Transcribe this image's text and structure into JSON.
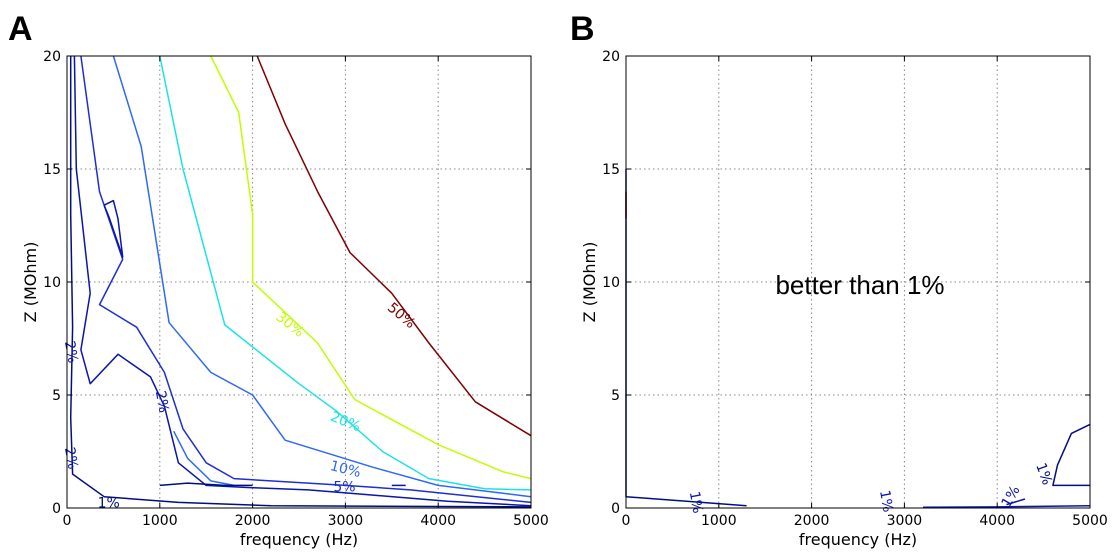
{
  "chart_data": [
    {
      "type": "contour",
      "panel_label": "A",
      "xlabel": "frequency (Hz)",
      "ylabel": "Z (MOhm)",
      "xlim": [
        0,
        5000
      ],
      "ylim": [
        0,
        20
      ],
      "xticks": [
        0,
        1000,
        2000,
        3000,
        4000,
        5000
      ],
      "yticks": [
        0,
        5,
        10,
        15,
        20
      ],
      "grid": true,
      "annotation": "",
      "levels": [
        {
          "name": "50%",
          "color": "#7f0000",
          "points": [
            [
              2050,
              20
            ],
            [
              2350,
              17
            ],
            [
              2700,
              14
            ],
            [
              3050,
              11.3
            ],
            [
              3500,
              9.5
            ],
            [
              3900,
              7.3
            ],
            [
              4400,
              4.7
            ],
            [
              5000,
              3.2
            ]
          ],
          "labels": [
            {
              "text": "50%",
              "x": 3600,
              "y": 8.5,
              "angle": 40
            }
          ]
        },
        {
          "name": "30%",
          "color": "#bfff00",
          "points": [
            [
              1550,
              20
            ],
            [
              1850,
              17.5
            ],
            [
              2000,
              13
            ],
            [
              2000,
              10
            ],
            [
              2700,
              7.3
            ],
            [
              3100,
              4.8
            ],
            [
              4000,
              2.8
            ],
            [
              4700,
              1.6
            ],
            [
              5000,
              1.3
            ]
          ],
          "labels": [
            {
              "text": "30%",
              "x": 2400,
              "y": 8.1,
              "angle": 38
            }
          ]
        },
        {
          "name": "20%",
          "color": "#1ce3e3",
          "points": [
            [
              1000,
              20
            ],
            [
              1250,
              15
            ],
            [
              1700,
              8.1
            ],
            [
              2500,
              5.5
            ],
            [
              2900,
              4.3
            ],
            [
              3400,
              2.5
            ],
            [
              3900,
              1.3
            ],
            [
              4500,
              0.85
            ],
            [
              5000,
              0.8
            ]
          ],
          "labels": [
            {
              "text": "20%",
              "x": 3000,
              "y": 3.8,
              "angle": 22
            }
          ]
        },
        {
          "name": "10%",
          "color": "#2d6af5",
          "points": [
            [
              500,
              20
            ],
            [
              800,
              16
            ],
            [
              1100,
              8.2
            ],
            [
              1550,
              6
            ],
            [
              2000,
              5
            ],
            [
              2350,
              3
            ],
            [
              3300,
              1.8
            ],
            [
              4000,
              1
            ],
            [
              5000,
              0.5
            ]
          ],
          "labels": [
            {
              "text": "10%",
              "x": 3000,
              "y": 1.7,
              "angle": 14
            }
          ]
        },
        {
          "name": "5%",
          "color": "#1e2fd2",
          "points": [
            [
              150,
              20
            ],
            [
              350,
              14
            ],
            [
              600,
              11
            ],
            [
              350,
              9
            ],
            [
              750,
              8
            ],
            [
              1050,
              6
            ],
            [
              1250,
              3.5
            ],
            [
              1500,
              2
            ],
            [
              1800,
              1.3
            ],
            [
              3000,
              1
            ],
            [
              3700,
              0.8
            ],
            [
              5000,
              0.25
            ]
          ],
          "labels": [
            {
              "text": "5%",
              "x": 2990,
              "y": 0.9,
              "angle": 0
            }
          ]
        },
        {
          "name": "2%",
          "color": "#0a15ab",
          "points": [
            [
              80,
              20
            ],
            [
              100,
              15
            ],
            [
              250,
              9.5
            ],
            [
              150,
              7
            ],
            [
              250,
              5.5
            ],
            [
              550,
              6.8
            ],
            [
              900,
              5.8
            ],
            [
              1050,
              4.5
            ],
            [
              1200,
              2
            ],
            [
              1500,
              1
            ],
            [
              2000,
              0.9
            ],
            [
              2600,
              0.8
            ],
            [
              3200,
              0.6
            ],
            [
              4100,
              0.3
            ],
            [
              5000,
              0.1
            ]
          ],
          "labels": [
            {
              "text": "2%",
              "x": 1020,
              "y": 4.7,
              "angle": 80
            },
            {
              "text": "2%",
              "x": 40,
              "y": 2.2,
              "angle": 80
            },
            {
              "text": "2%",
              "x": 40,
              "y": 6.9,
              "angle": 80
            }
          ]
        },
        {
          "name": "1%",
          "color": "#000f80",
          "points": [
            [
              40,
              20
            ],
            [
              40,
              13
            ],
            [
              60,
              8
            ],
            [
              40,
              4
            ],
            [
              60,
              1.5
            ],
            [
              400,
              0.5
            ],
            [
              1200,
              0.25
            ],
            [
              2200,
              0.1
            ],
            [
              5000,
              0.05
            ]
          ],
          "labels": [
            {
              "text": "1%",
              "x": 450,
              "y": 0.2,
              "angle": 0
            }
          ]
        }
      ],
      "extra_paths": [
        {
          "color": "#0a15ab",
          "points": [
            [
              400,
              13.4
            ],
            [
              500,
              13.6
            ],
            [
              550,
              12.8
            ],
            [
              600,
              11.1
            ],
            [
              450,
              12.9
            ],
            [
              400,
              13.4
            ]
          ]
        },
        {
          "color": "#2d6af5",
          "points": [
            [
              1150,
              3.4
            ],
            [
              1300,
              2.2
            ],
            [
              1550,
              1.2
            ],
            [
              1800,
              1.0
            ]
          ]
        },
        {
          "color": "#000f80",
          "points": [
            [
              1000,
              1.0
            ],
            [
              1300,
              1.1
            ],
            [
              1700,
              1.0
            ],
            [
              2000,
              1.0
            ]
          ]
        },
        {
          "color": "#0a15ab",
          "points": [
            [
              3500,
              1.0
            ],
            [
              3650,
              1.0
            ]
          ]
        }
      ]
    },
    {
      "type": "contour",
      "panel_label": "B",
      "xlabel": "frequency (Hz)",
      "ylabel": "Z (MOhm)",
      "xlim": [
        0,
        5000
      ],
      "ylim": [
        0,
        20
      ],
      "xticks": [
        0,
        1000,
        2000,
        3000,
        4000,
        5000
      ],
      "yticks": [
        0,
        5,
        10,
        15,
        20
      ],
      "grid": true,
      "annotation": "better than 1%",
      "levels": [
        {
          "name": "1%",
          "color": "#000f80",
          "points": [
            [
              5000,
              3.7
            ],
            [
              4800,
              3.3
            ],
            [
              4650,
              1.9
            ],
            [
              4600,
              1.0
            ],
            [
              5000,
              1.0
            ]
          ],
          "labels": [
            {
              "text": "1%",
              "x": 4500,
              "y": 1.5,
              "angle": 70
            }
          ]
        },
        {
          "name": "1%",
          "color": "#0a15ab",
          "points": [
            [
              3200,
              0.03
            ],
            [
              4000,
              0.05
            ],
            [
              5000,
              0.1
            ]
          ],
          "labels": [
            {
              "text": "1%",
              "x": 750,
              "y": 0.25,
              "angle": 80
            },
            {
              "text": "1%",
              "x": 2800,
              "y": 0.3,
              "angle": 80
            },
            {
              "text": "1%",
              "x": 4150,
              "y": 0.5,
              "angle": -60
            }
          ]
        }
      ],
      "extra_paths": [
        {
          "color": "#0a15ab",
          "points": [
            [
              4100,
              0.15
            ],
            [
              4300,
              0.4
            ]
          ]
        },
        {
          "color": "#000f80",
          "points": [
            [
              0,
              15
            ],
            [
              0,
              0.5
            ],
            [
              1300,
              0.1
            ]
          ]
        },
        {
          "color": "#7f0000",
          "points": [
            [
              0,
              14
            ],
            [
              0,
              12.8
            ]
          ]
        }
      ]
    }
  ]
}
